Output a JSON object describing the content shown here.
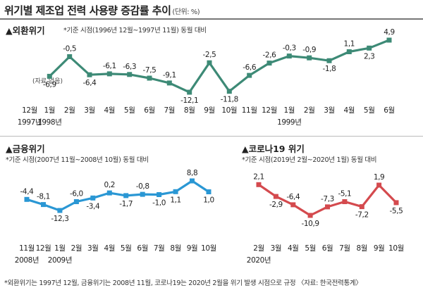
{
  "title": "위기별 제조업 전력 사용량 증감률 추이",
  "unit": "(단위: %)",
  "footer": "*외환위기는 1997년 12월, 금융위기는 2008년 11월, 코로나19는 2020년 2월을 위기 발생 시점으로 규정 〈자료: 한국전력통계〉",
  "chart_data": [
    {
      "type": "line",
      "title": "▲외환위기",
      "note": "*기준 시점(1996년 12월~1997년 11월) 동월 대비",
      "color": "#3d8a76",
      "no_value_note": "(자료 없음)",
      "categories": [
        "12월",
        "1월",
        "2월",
        "3월",
        "4월",
        "5월",
        "6월",
        "7월",
        "8월",
        "9월",
        "10월",
        "11월",
        "12월",
        "1월",
        "2월",
        "3월",
        "4월",
        "5월",
        "6월"
      ],
      "year_labels": [
        {
          "index": 0,
          "label": "1997년"
        },
        {
          "index": 1,
          "label": "1998년"
        },
        {
          "index": 13,
          "label": "1999년"
        }
      ],
      "values": [
        null,
        -6.9,
        -0.5,
        -6.4,
        -6.1,
        -6.3,
        -7.5,
        -9.1,
        -12.1,
        -2.5,
        -11.8,
        -6.6,
        -2.6,
        -0.3,
        -0.9,
        -1.8,
        1.1,
        2.3,
        4.9
      ],
      "value_labels": [
        "",
        "-6,9",
        "-0,5",
        "-6,4",
        "-6,1",
        "-6,3",
        "-7,5",
        "-9,1",
        "-12,1",
        "-2,5",
        "-11,8",
        "-6,6",
        "-2,6",
        "-0,3",
        "-0,9",
        "-1,8",
        "1,1",
        "2,3",
        "4,9"
      ]
    },
    {
      "type": "line",
      "title": "▲금융위기",
      "note": "*기준 시점(2007년 11월~2008년 10월) 동월 대비",
      "color": "#2a97d4",
      "categories": [
        "11월",
        "12월",
        "1월",
        "2월",
        "3월",
        "4월",
        "5월",
        "6월",
        "7월",
        "8월",
        "9월",
        "10월"
      ],
      "year_labels": [
        {
          "index": 0,
          "label": "2008년"
        },
        {
          "index": 2,
          "label": "2009년"
        }
      ],
      "values": [
        -4.4,
        -8.1,
        -12.3,
        -6.0,
        -3.4,
        0.2,
        -1.7,
        -0.8,
        -1.0,
        1.1,
        8.8,
        1.0
      ],
      "value_labels": [
        "-4,4",
        "-8,1",
        "-12,3",
        "-6,0",
        "-3,4",
        "0,2",
        "-1,7",
        "-0,8",
        "-1,0",
        "1,1",
        "8,8",
        "1,0"
      ]
    },
    {
      "type": "line",
      "title": "▲코로나19 위기",
      "note": "*기준 시점(2019년 2월~2020년 1월) 동월 대비",
      "color": "#d44a4e",
      "categories": [
        "2월",
        "3월",
        "4월",
        "5월",
        "6월",
        "7월",
        "8월",
        "9월",
        "10월"
      ],
      "year_labels": [
        {
          "index": 0,
          "label": "2020년"
        }
      ],
      "values": [
        2.1,
        -2.9,
        -6.4,
        -10.9,
        -7.3,
        -5.1,
        -7.2,
        1.9,
        -5.5
      ],
      "value_labels": [
        "2,1",
        "-2,9",
        "-6,4",
        "-10,9",
        "-7,3",
        "-5,1",
        "-7,2",
        "1,9",
        "-5,5"
      ]
    }
  ]
}
